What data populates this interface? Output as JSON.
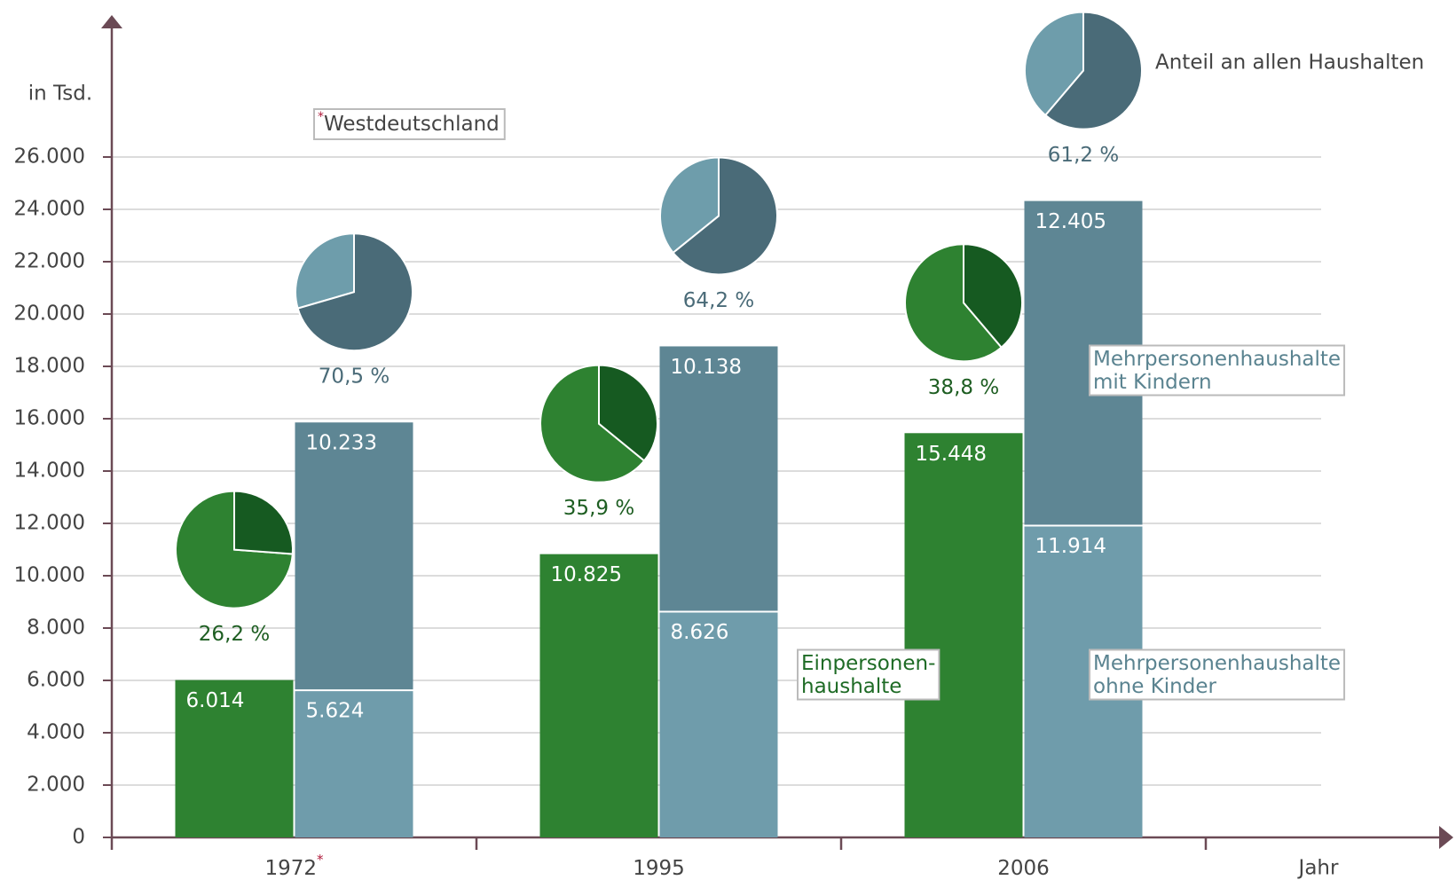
{
  "chart_data": {
    "type": "bar",
    "y_label": "in Tsd.",
    "x_label": "Jahr",
    "categories": [
      "1972",
      "1995",
      "2006"
    ],
    "note": {
      "marker": "*",
      "text": "Westdeutschland",
      "applies_to": "1972"
    },
    "ylim": [
      0,
      26000
    ],
    "yticks": [
      0,
      {
        "value": 2000,
        "label": "2.000"
      },
      {
        "value": 4000,
        "label": "4.000"
      },
      {
        "value": 6000,
        "label": "6.000"
      },
      {
        "value": 8000,
        "label": "8.000"
      },
      {
        "value": 10000,
        "label": "10.000"
      },
      {
        "value": 12000,
        "label": "12.000"
      },
      {
        "value": 14000,
        "label": "14.000"
      },
      {
        "value": 16000,
        "label": "16.000"
      },
      {
        "value": 18000,
        "label": "18.000"
      },
      {
        "value": 20000,
        "label": "20.000"
      },
      {
        "value": 22000,
        "label": "22.000"
      },
      {
        "value": 24000,
        "label": "24.000"
      },
      {
        "value": 26000,
        "label": "26.000"
      }
    ],
    "grid": true,
    "series": [
      {
        "name": "Einpersonen-\nhaushalte",
        "color": "#2e8231",
        "group": 0,
        "values": [
          6014,
          10825,
          15448
        ],
        "value_labels": [
          "6.014",
          "10.825",
          "15.448"
        ]
      },
      {
        "name": "Mehrpersonenhaushalte\nohne Kinder",
        "color": "#6f9cab",
        "group": 1,
        "values": [
          5624,
          8626,
          11914
        ],
        "value_labels": [
          "5.624",
          "8.626",
          "11.914"
        ]
      },
      {
        "name": "Mehrpersonenhaushalte\nmit Kindern",
        "color": "#5e8694",
        "group": 1,
        "values": [
          10233,
          10138,
          12405
        ],
        "value_labels": [
          "10.233",
          "10.138",
          "12.405"
        ]
      }
    ],
    "pies": {
      "title": "Anteil an allen Haushalten",
      "series": [
        {
          "group": 0,
          "colors": [
            "#165a21",
            "#2e8231"
          ],
          "label_color": "#1e5e22",
          "values": [
            26.2,
            35.9,
            38.8
          ],
          "value_labels": [
            "26,2 %",
            "35,9 %",
            "38,8 %"
          ]
        },
        {
          "group": 1,
          "colors": [
            "#4a6b78",
            "#6e9dab"
          ],
          "label_color": "#4a6b78",
          "values": [
            70.5,
            64.2,
            61.2
          ],
          "value_labels": [
            "70,5 %",
            "64,2 %",
            "61,2 %"
          ]
        }
      ]
    }
  }
}
